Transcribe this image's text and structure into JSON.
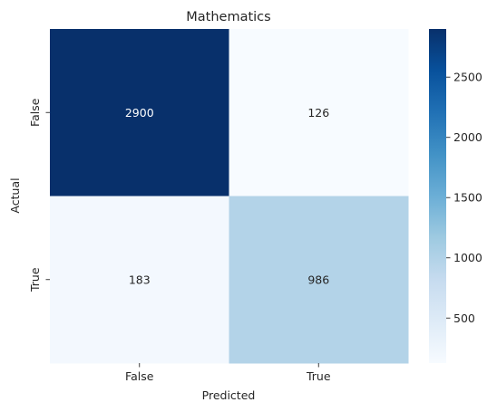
{
  "chart_data": {
    "type": "heatmap",
    "title": "Mathematics",
    "xlabel": "Predicted",
    "ylabel": "Actual",
    "x_categories": [
      "False",
      "True"
    ],
    "y_categories": [
      "False",
      "True"
    ],
    "values": [
      [
        2900,
        126
      ],
      [
        183,
        986
      ]
    ],
    "colormap": "Blues",
    "color_min": 126,
    "color_max": 2900,
    "colorbar_ticks": [
      500,
      1000,
      1500,
      2000,
      2500
    ],
    "colorbar_tick_labels": [
      "500",
      "1000",
      "1500",
      "2000",
      "2500"
    ],
    "cell_labels": [
      [
        "2900",
        "126"
      ],
      [
        "183",
        "986"
      ]
    ],
    "text_light": "#ffffff",
    "text_dark": "#262626"
  }
}
